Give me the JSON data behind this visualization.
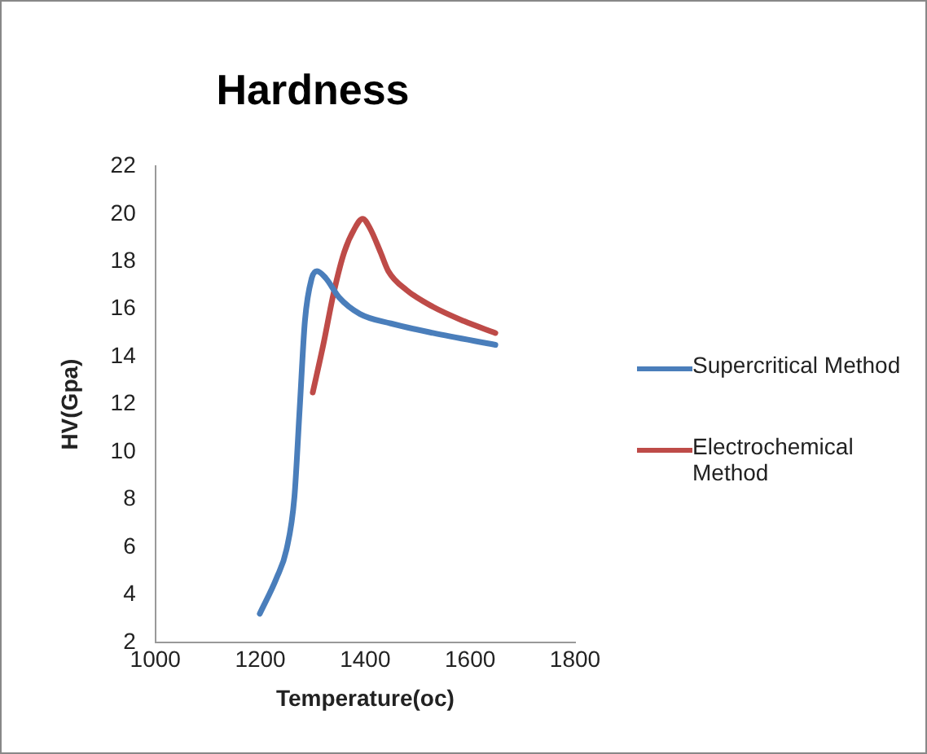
{
  "chart_data": {
    "type": "line",
    "title": "Hardness",
    "xlabel": "Temperature(oc)",
    "ylabel": "HV(Gpa)",
    "xlim": [
      1000,
      1800
    ],
    "xticks": [
      1000,
      1200,
      1400,
      1600,
      1800
    ],
    "ylim": [
      2,
      22
    ],
    "yticks": [
      2,
      4,
      6,
      8,
      10,
      12,
      14,
      16,
      18,
      20,
      22
    ],
    "grid": false,
    "legend": "right",
    "marker": "none",
    "line_style": "solid",
    "series": [
      {
        "name": "Supercritical Method",
        "color": "#4a7ebb",
        "x": [
          1199,
          1231,
          1250,
          1265,
          1275,
          1285,
          1298,
          1308,
          1325,
          1350,
          1390,
          1449,
          1529,
          1648
        ],
        "values": [
          3.2,
          4.7,
          5.9,
          8.1,
          11.8,
          15.5,
          17.3,
          17.6,
          17.3,
          16.5,
          15.8,
          15.4,
          15.0,
          14.5
        ]
      },
      {
        "name": "Electrochemical Method",
        "color": "#be4b48",
        "x": [
          1300,
          1320,
          1340,
          1360,
          1380,
          1395,
          1409,
          1429,
          1444,
          1479,
          1529,
          1588,
          1648
        ],
        "values": [
          12.5,
          14.5,
          16.7,
          18.4,
          19.4,
          19.8,
          19.4,
          18.4,
          17.6,
          16.8,
          16.1,
          15.5,
          15.0
        ]
      }
    ]
  }
}
